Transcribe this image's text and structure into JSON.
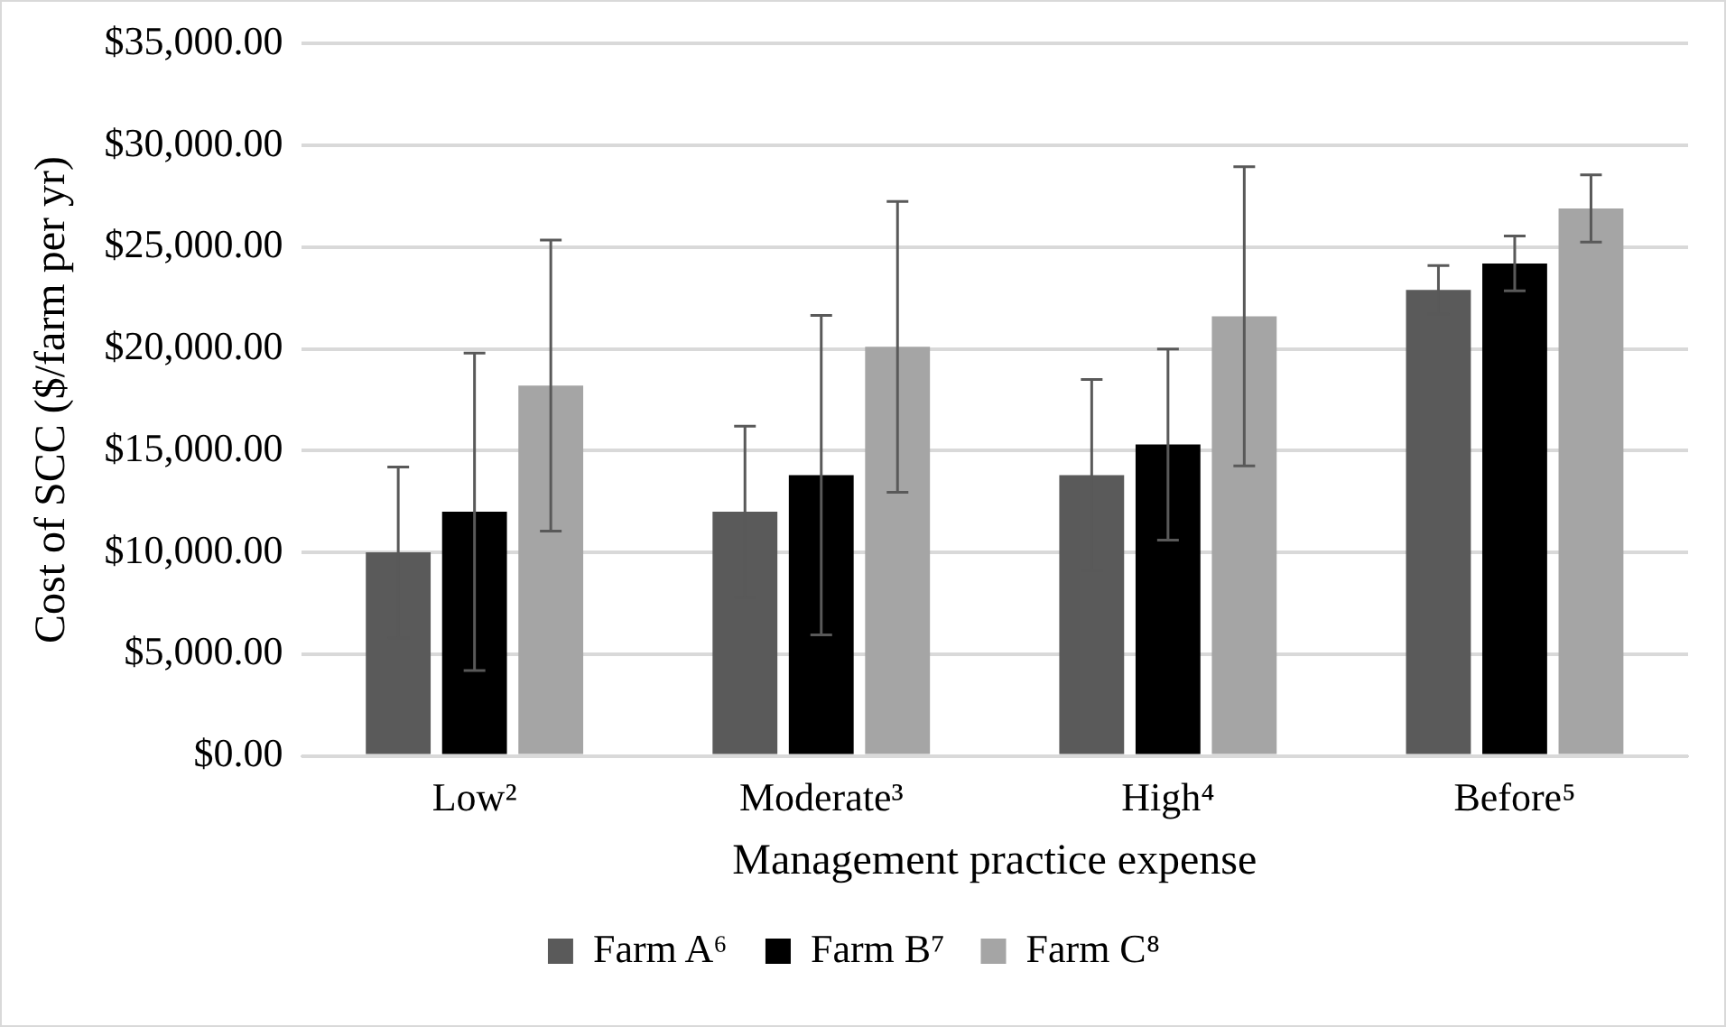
{
  "chart_data": {
    "type": "bar",
    "xlabel": "Management practice expense",
    "ylabel": "Cost of SCC ($/farm per yr)",
    "categories": [
      "Low²",
      "Moderate³",
      "High⁴",
      "Before⁵"
    ],
    "series": [
      {
        "name": "Farm A⁶",
        "color": "#5a5a5a",
        "values": [
          10000,
          12000,
          13800,
          22900
        ],
        "errors": [
          4200,
          4200,
          4700,
          1200
        ]
      },
      {
        "name": "Farm B⁷",
        "color": "#000000",
        "values": [
          12000,
          13800,
          15300,
          24200
        ],
        "errors": [
          7800,
          7850,
          4700,
          1350
        ]
      },
      {
        "name": "Farm C⁸",
        "color": "#a5a5a5",
        "values": [
          18200,
          20100,
          21600,
          26900
        ],
        "errors": [
          7150,
          7150,
          7350,
          1650
        ]
      }
    ],
    "ylim": [
      0,
      35000
    ],
    "yticks": [
      {
        "value": 0,
        "label": "$0.00"
      },
      {
        "value": 5000,
        "label": "$5,000.00"
      },
      {
        "value": 10000,
        "label": "$10,000.00"
      },
      {
        "value": 15000,
        "label": "$15,000.00"
      },
      {
        "value": 20000,
        "label": "$20,000.00"
      },
      {
        "value": 25000,
        "label": "$25,000.00"
      },
      {
        "value": 30000,
        "label": "$30,000.00"
      },
      {
        "value": 35000,
        "label": "$35,000.00"
      }
    ],
    "grid": "y",
    "legend": "bottom"
  }
}
